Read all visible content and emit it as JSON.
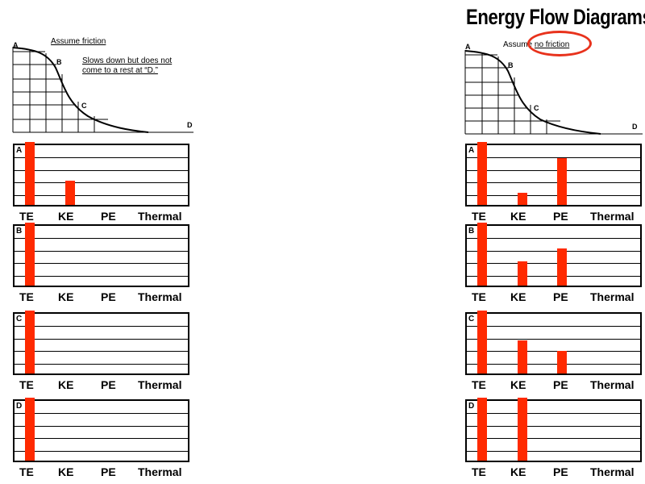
{
  "title": "Energy Flow Diagrams",
  "colors": {
    "bar": "#ff2a00",
    "circle": "#e8321c"
  },
  "left": {
    "assumption": "Assume friction",
    "note_line1": "Slows down but does not",
    "note_line2": "come to a rest at “D.”",
    "track_points": [
      "A",
      "B",
      "C",
      "D"
    ]
  },
  "right": {
    "assumption_prefix": "Assume ",
    "assumption_circled": "no friction",
    "track_points": [
      "A",
      "B",
      "C",
      "D"
    ]
  },
  "chart_data": [
    {
      "type": "bar",
      "title": "A (friction)",
      "categories": [
        "TE",
        "KE",
        "PE",
        "Thermal"
      ],
      "values": [
        100,
        40,
        0,
        0
      ],
      "ylim": [
        0,
        100
      ]
    },
    {
      "type": "bar",
      "title": "B (friction)",
      "categories": [
        "TE",
        "KE",
        "PE",
        "Thermal"
      ],
      "values": [
        100,
        0,
        0,
        0
      ],
      "ylim": [
        0,
        100
      ]
    },
    {
      "type": "bar",
      "title": "C (friction)",
      "categories": [
        "TE",
        "KE",
        "PE",
        "Thermal"
      ],
      "values": [
        100,
        0,
        0,
        0
      ],
      "ylim": [
        0,
        100
      ]
    },
    {
      "type": "bar",
      "title": "D (friction)",
      "categories": [
        "TE",
        "KE",
        "PE",
        "Thermal"
      ],
      "values": [
        100,
        0,
        0,
        0
      ],
      "ylim": [
        0,
        100
      ]
    },
    {
      "type": "bar",
      "title": "A (no friction)",
      "categories": [
        "TE",
        "KE",
        "PE",
        "Thermal"
      ],
      "values": [
        100,
        20,
        78,
        0
      ],
      "ylim": [
        0,
        100
      ]
    },
    {
      "type": "bar",
      "title": "B (no friction)",
      "categories": [
        "TE",
        "KE",
        "PE",
        "Thermal"
      ],
      "values": [
        100,
        40,
        62,
        0
      ],
      "ylim": [
        0,
        100
      ]
    },
    {
      "type": "bar",
      "title": "C (no friction)",
      "categories": [
        "TE",
        "KE",
        "PE",
        "Thermal"
      ],
      "values": [
        100,
        55,
        38,
        0
      ],
      "ylim": [
        0,
        100
      ]
    },
    {
      "type": "bar",
      "title": "D (no friction)",
      "categories": [
        "TE",
        "KE",
        "PE",
        "Thermal"
      ],
      "values": [
        100,
        100,
        0,
        0
      ],
      "ylim": [
        0,
        100
      ]
    }
  ],
  "panel_labels": [
    "A",
    "B",
    "C",
    "D",
    "A",
    "B",
    "C",
    "D"
  ]
}
